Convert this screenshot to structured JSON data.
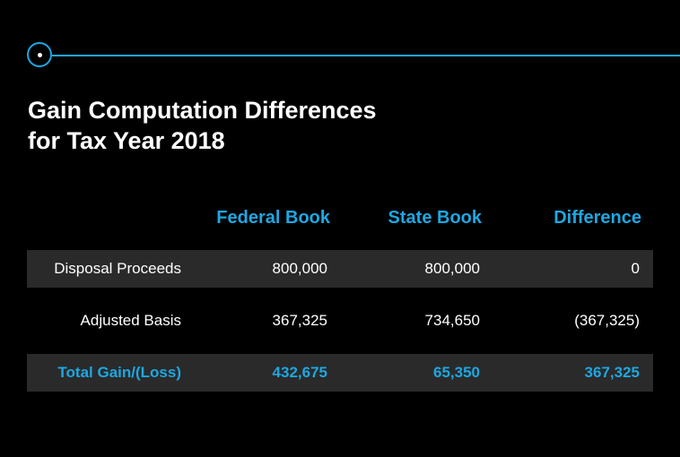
{
  "title": {
    "line1": "Gain Computation Differences",
    "line2": "for Tax Year 2018"
  },
  "columns": {
    "federal": "Federal Book",
    "state": "State Book",
    "difference": "Difference"
  },
  "rows": [
    {
      "label": "Disposal Proceeds",
      "federal": "800,000",
      "state": "800,000",
      "difference": "0"
    },
    {
      "label": "Adjusted Basis",
      "federal": "367,325",
      "state": "734,650",
      "difference": "(367,325)"
    }
  ],
  "total": {
    "label": "Total Gain/(Loss)",
    "federal": "432,675",
    "state": "65,350",
    "difference": "367,325"
  },
  "colors": {
    "accent": "#1ea7e1",
    "shade": "#2a2a2a",
    "background": "#000000"
  }
}
